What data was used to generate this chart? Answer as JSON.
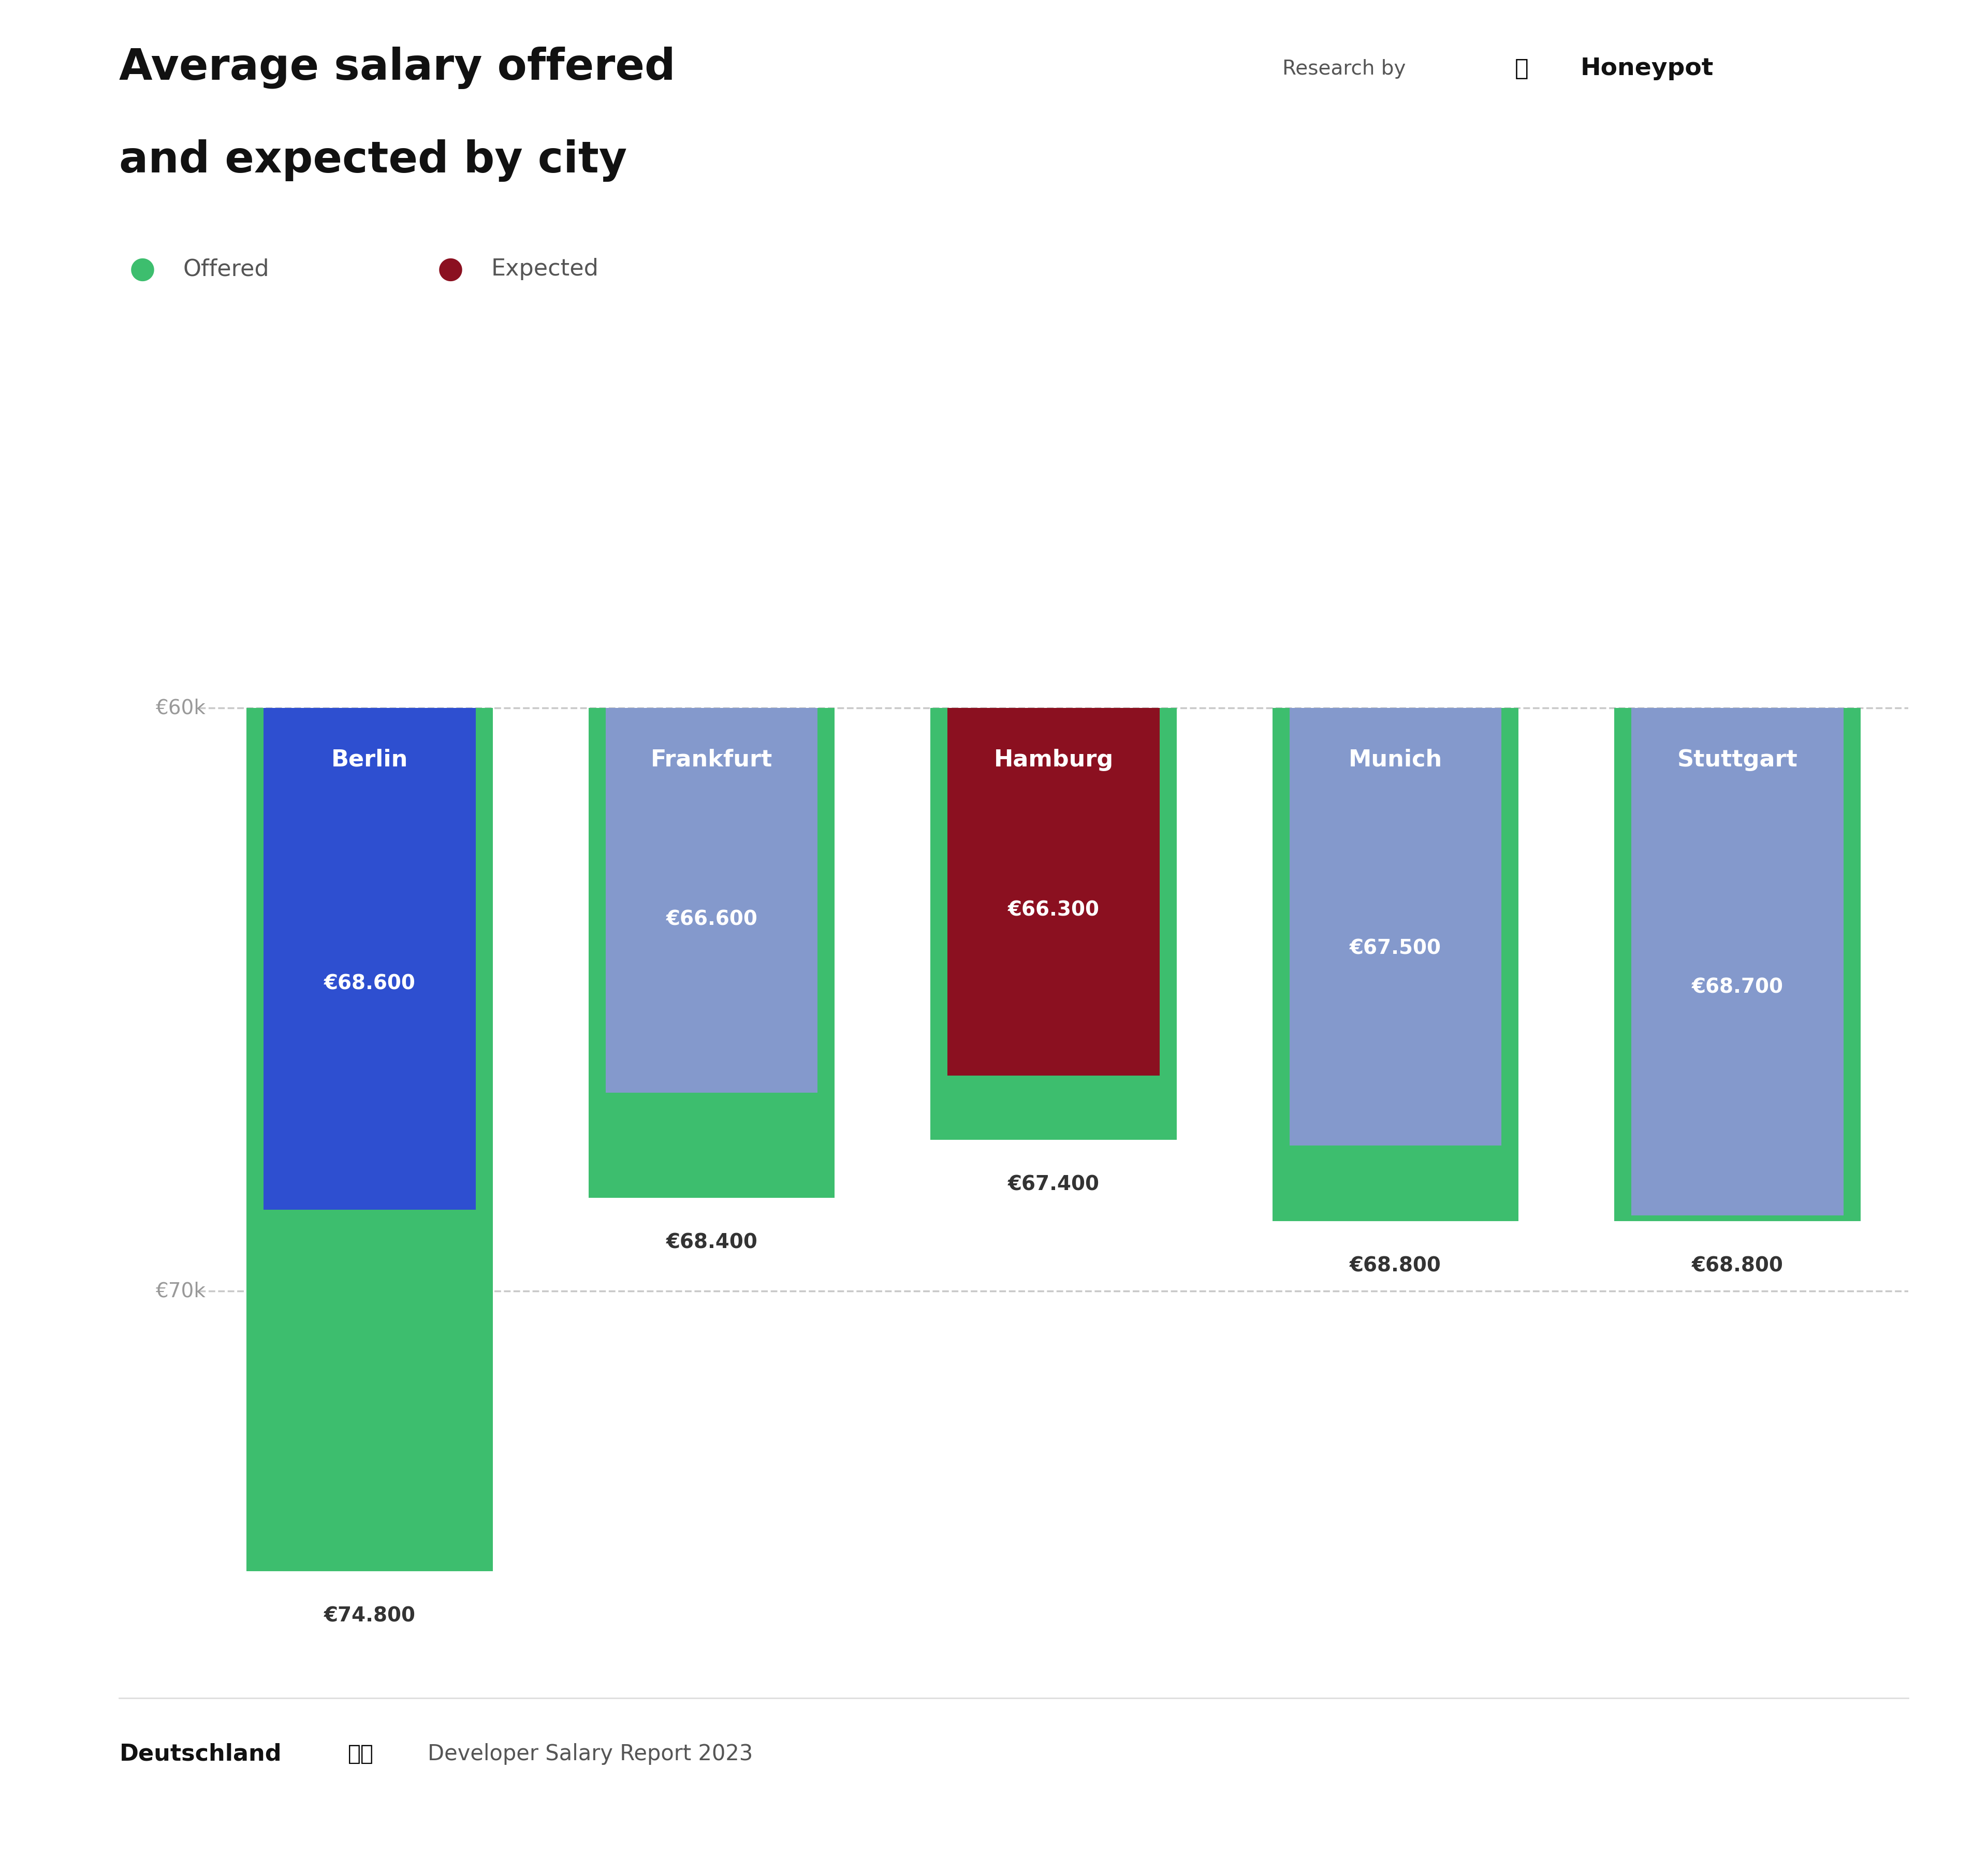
{
  "title_line1": "Average salary offered",
  "title_line2": "and expected by city",
  "title_fontsize": 60,
  "legend_offered_label": "Offered",
  "legend_expected_label": "Expected",
  "legend_color_offered": "#3DBE6E",
  "legend_color_expected": "#8B1020",
  "cities": [
    "Berlin",
    "Frankfurt",
    "Hamburg",
    "Munich",
    "Stuttgart"
  ],
  "offered_values": [
    74800,
    68400,
    67400,
    68800,
    68800
  ],
  "expected_values": [
    68600,
    66600,
    66300,
    67500,
    68700
  ],
  "offered_color": "#3DBE6E",
  "expected_colors": [
    "#2E4FD0",
    "#8499CC",
    "#8B1020",
    "#8499CC",
    "#8499CC"
  ],
  "grid_lines": [
    60000,
    70000
  ],
  "grid_labels": [
    "€60k",
    "€70k"
  ],
  "background_color": "#FFFFFF",
  "footer_left_bold": "Deutschland",
  "footer_right": "Developer Salary Report 2023",
  "axis_label_color": "#AAAAAA",
  "bar_baseline": 60000,
  "y_axis_max": 76500,
  "offered_bar_width": 0.72,
  "expected_bar_width": 0.62
}
